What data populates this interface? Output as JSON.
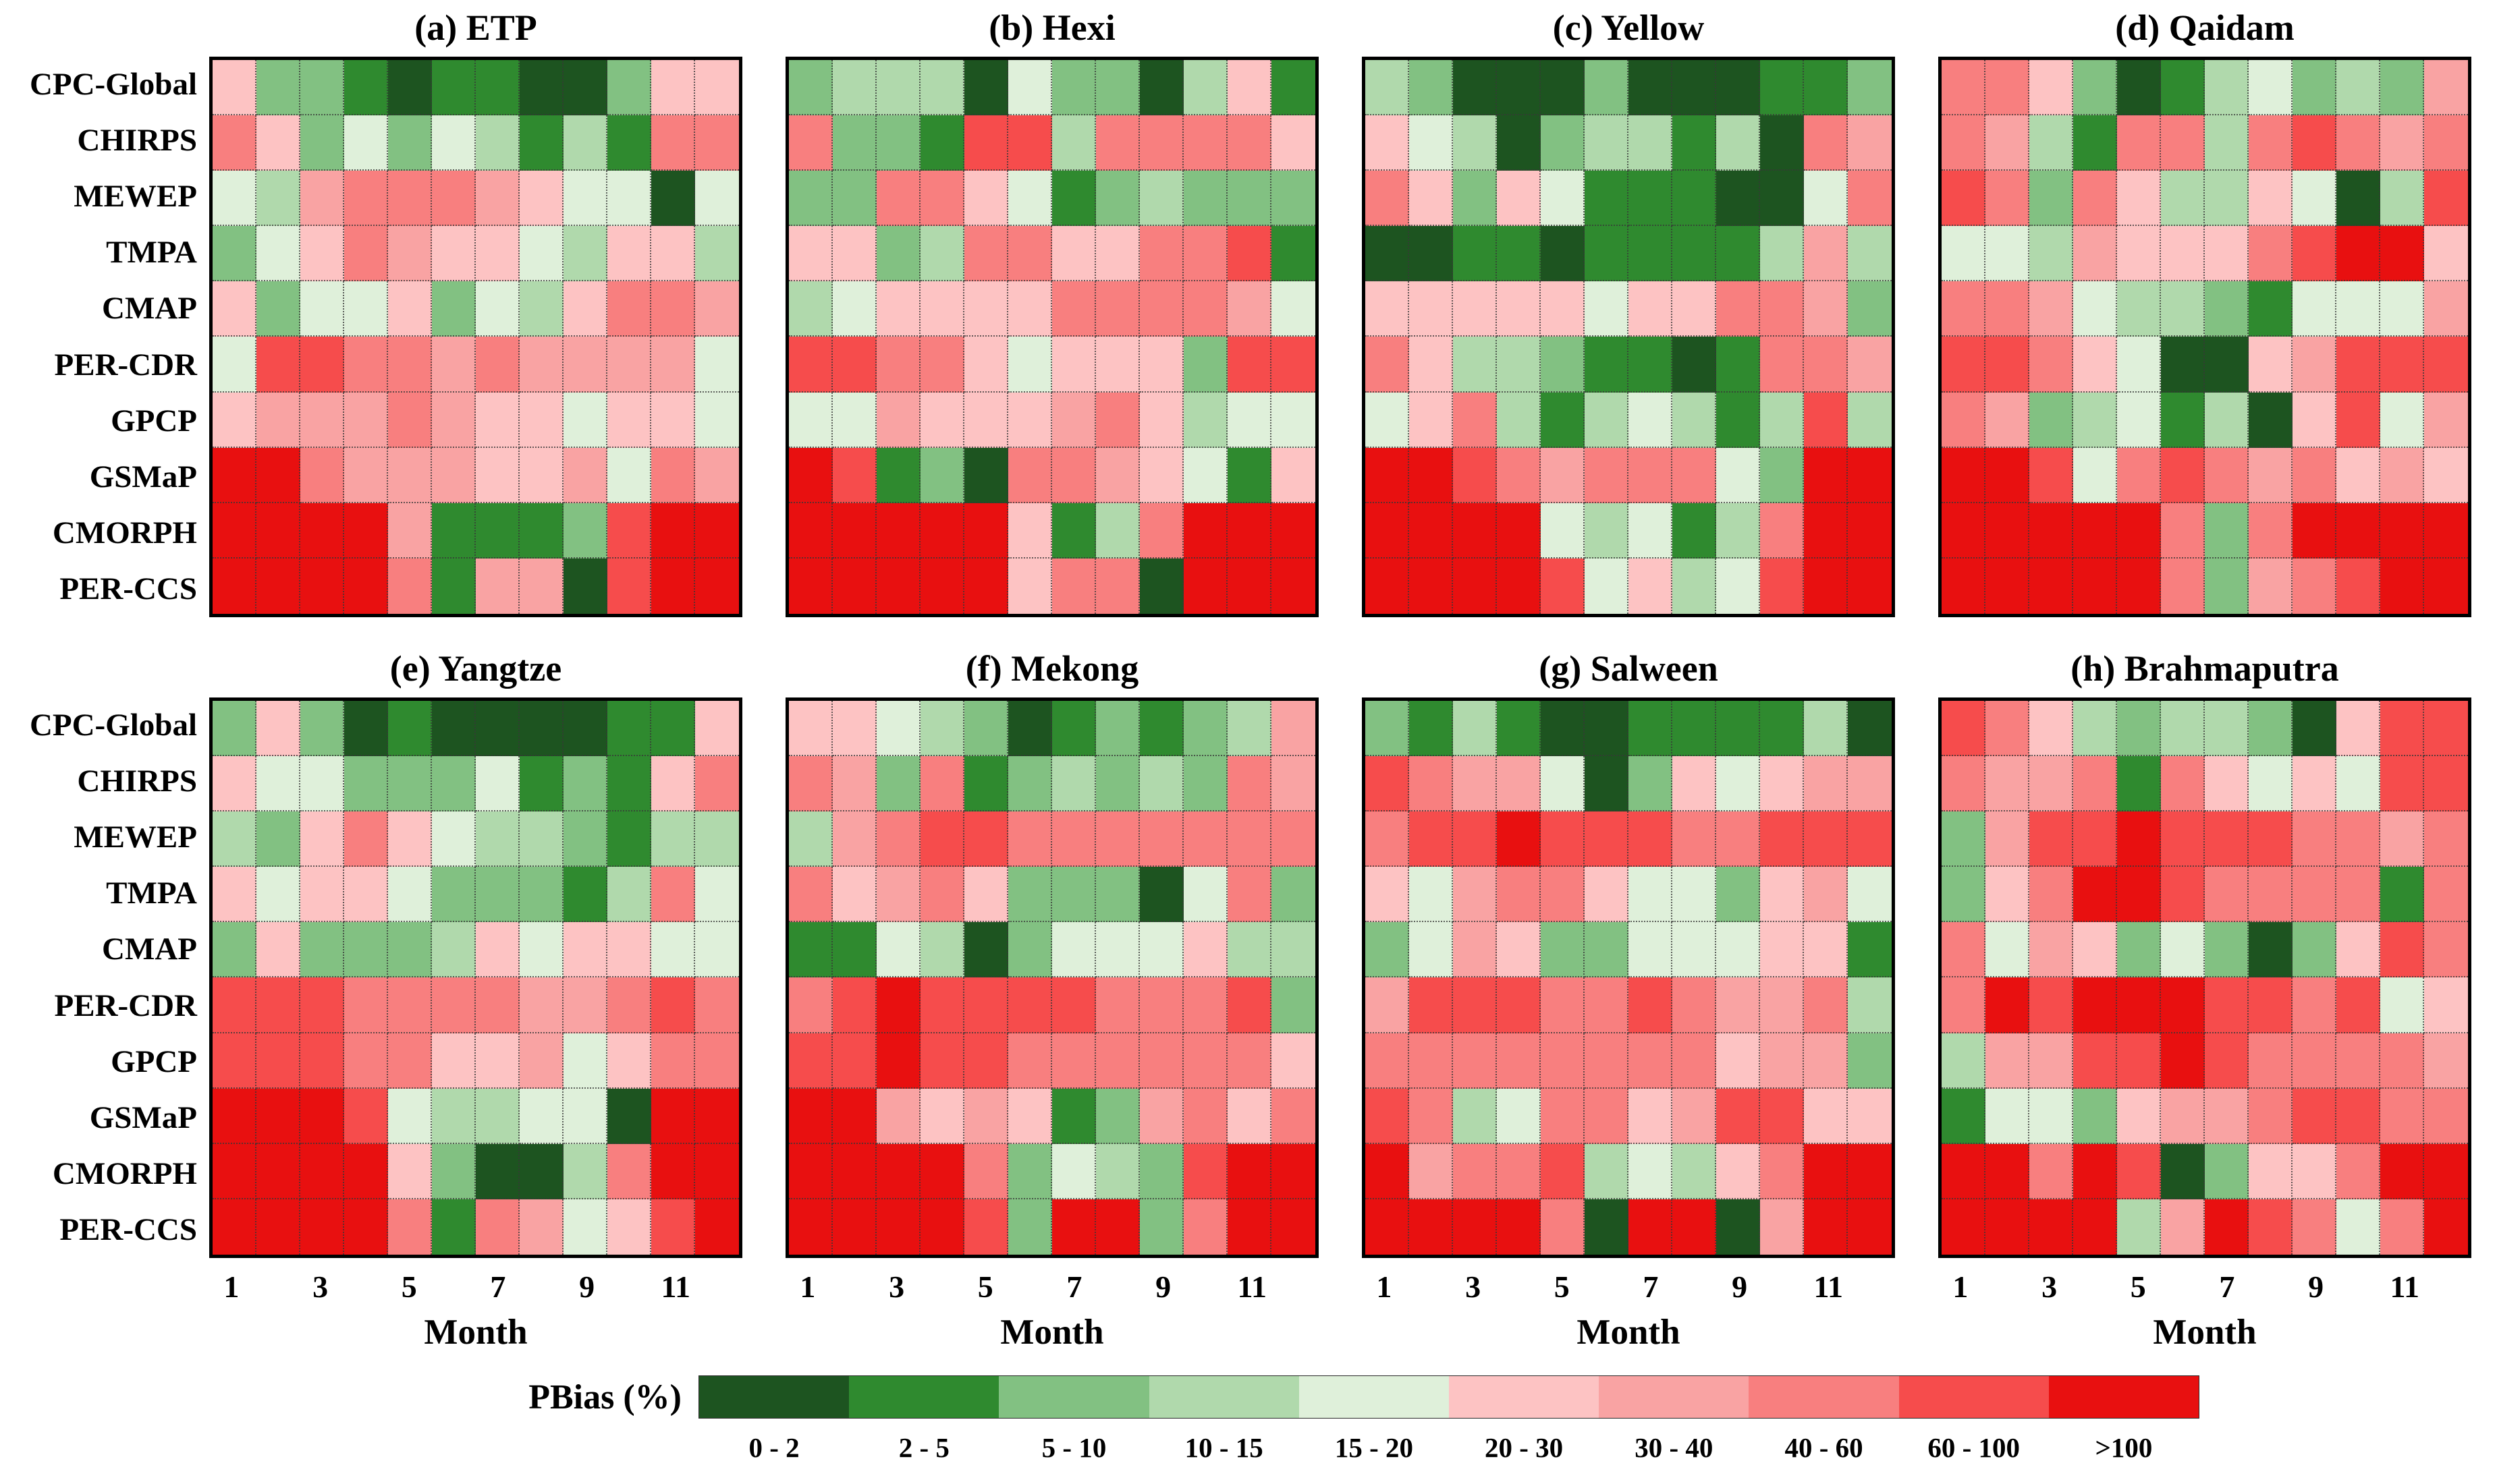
{
  "chart_data": {
    "type": "heatmap",
    "xlabel": "Month",
    "x_ticks": [
      "1",
      "3",
      "5",
      "7",
      "9",
      "11"
    ],
    "x_categories": [
      "1",
      "2",
      "3",
      "4",
      "5",
      "6",
      "7",
      "8",
      "9",
      "10",
      "11",
      "12"
    ],
    "row_labels": [
      "CPC-Global",
      "CHIRPS",
      "MEWEP",
      "TMPA",
      "CMAP",
      "PER-CDR",
      "GPCP",
      "GSMaP",
      "CMORPH",
      "PER-CCS"
    ],
    "value_encoding": "each grid value is an index into legend.classes giving the PBias (%) bin of that product-month cell",
    "legend": {
      "title": "PBias (%)",
      "classes": [
        {
          "label": "0 - 2",
          "color": "#1d5420"
        },
        {
          "label": "2 - 5",
          "color": "#2f8a2f"
        },
        {
          "label": "5 - 10",
          "color": "#82c182"
        },
        {
          "label": "10 - 15",
          "color": "#b0d9ac"
        },
        {
          "label": "15 - 20",
          "color": "#dff0da"
        },
        {
          "label": "20 - 30",
          "color": "#fdc3c3"
        },
        {
          "label": "30 - 40",
          "color": "#f9a3a3"
        },
        {
          "label": "40 - 60",
          "color": "#f87f7f"
        },
        {
          "label": "60 - 100",
          "color": "#f64c4c"
        },
        {
          "label": ">100",
          "color": "#e81010"
        }
      ]
    },
    "panels": [
      {
        "key": "a",
        "title": "(a) ETP",
        "grid": [
          [
            5,
            2,
            2,
            1,
            0,
            1,
            1,
            0,
            0,
            2,
            5,
            5
          ],
          [
            7,
            5,
            2,
            4,
            2,
            4,
            3,
            1,
            3,
            1,
            7,
            7
          ],
          [
            4,
            3,
            6,
            7,
            7,
            7,
            6,
            5,
            4,
            4,
            0,
            4
          ],
          [
            2,
            4,
            5,
            7,
            6,
            5,
            5,
            4,
            3,
            5,
            5,
            3
          ],
          [
            5,
            2,
            4,
            4,
            5,
            2,
            4,
            3,
            5,
            7,
            7,
            6
          ],
          [
            4,
            8,
            8,
            7,
            7,
            6,
            7,
            6,
            6,
            6,
            6,
            4
          ],
          [
            5,
            6,
            6,
            6,
            7,
            6,
            5,
            5,
            4,
            5,
            5,
            4
          ],
          [
            9,
            9,
            7,
            6,
            6,
            6,
            5,
            5,
            6,
            4,
            7,
            6
          ],
          [
            9,
            9,
            9,
            9,
            6,
            1,
            1,
            1,
            2,
            8,
            9,
            9
          ],
          [
            9,
            9,
            9,
            9,
            7,
            1,
            6,
            6,
            0,
            8,
            9,
            9
          ]
        ]
      },
      {
        "key": "b",
        "title": "(b) Hexi",
        "grid": [
          [
            2,
            3,
            3,
            3,
            0,
            4,
            2,
            2,
            0,
            3,
            5,
            1
          ],
          [
            7,
            2,
            2,
            1,
            8,
            8,
            3,
            7,
            7,
            7,
            7,
            5
          ],
          [
            2,
            2,
            7,
            7,
            5,
            4,
            1,
            2,
            3,
            2,
            2,
            2
          ],
          [
            5,
            5,
            2,
            3,
            7,
            7,
            5,
            5,
            7,
            7,
            8,
            1
          ],
          [
            3,
            4,
            5,
            5,
            5,
            5,
            7,
            7,
            7,
            7,
            6,
            4
          ],
          [
            8,
            8,
            7,
            7,
            5,
            4,
            5,
            5,
            5,
            2,
            8,
            8
          ],
          [
            4,
            4,
            6,
            5,
            5,
            5,
            6,
            7,
            5,
            3,
            4,
            4
          ],
          [
            9,
            8,
            1,
            2,
            0,
            7,
            7,
            6,
            5,
            4,
            1,
            5
          ],
          [
            9,
            9,
            9,
            9,
            9,
            5,
            1,
            3,
            7,
            9,
            9,
            9
          ],
          [
            9,
            9,
            9,
            9,
            9,
            5,
            7,
            7,
            0,
            9,
            9,
            9
          ]
        ]
      },
      {
        "key": "c",
        "title": "(c) Yellow",
        "grid": [
          [
            3,
            2,
            0,
            0,
            0,
            2,
            0,
            0,
            0,
            1,
            1,
            2
          ],
          [
            5,
            4,
            3,
            0,
            2,
            3,
            3,
            1,
            3,
            0,
            7,
            6
          ],
          [
            7,
            5,
            2,
            5,
            4,
            1,
            1,
            1,
            0,
            0,
            4,
            7
          ],
          [
            0,
            0,
            1,
            1,
            0,
            1,
            1,
            1,
            1,
            3,
            6,
            3
          ],
          [
            5,
            5,
            5,
            5,
            5,
            4,
            5,
            5,
            7,
            7,
            6,
            2
          ],
          [
            7,
            5,
            3,
            3,
            2,
            1,
            1,
            0,
            1,
            7,
            7,
            6
          ],
          [
            4,
            5,
            7,
            3,
            1,
            3,
            4,
            3,
            1,
            3,
            8,
            3
          ],
          [
            9,
            9,
            8,
            7,
            6,
            7,
            7,
            7,
            4,
            2,
            9,
            9
          ],
          [
            9,
            9,
            9,
            9,
            4,
            3,
            4,
            1,
            3,
            7,
            9,
            9
          ],
          [
            9,
            9,
            9,
            9,
            8,
            4,
            5,
            3,
            4,
            8,
            9,
            9
          ]
        ]
      },
      {
        "key": "d",
        "title": "(d) Qaidam",
        "grid": [
          [
            7,
            7,
            5,
            2,
            0,
            1,
            3,
            4,
            2,
            3,
            2,
            6
          ],
          [
            7,
            6,
            3,
            1,
            7,
            7,
            3,
            7,
            8,
            7,
            6,
            7
          ],
          [
            8,
            7,
            2,
            7,
            5,
            3,
            3,
            5,
            4,
            0,
            3,
            8
          ],
          [
            4,
            4,
            3,
            6,
            5,
            5,
            5,
            7,
            8,
            9,
            9,
            5
          ],
          [
            7,
            7,
            6,
            4,
            3,
            3,
            2,
            1,
            4,
            4,
            4,
            6
          ],
          [
            8,
            8,
            7,
            5,
            4,
            0,
            0,
            5,
            6,
            8,
            8,
            8
          ],
          [
            7,
            6,
            2,
            3,
            4,
            1,
            3,
            0,
            5,
            8,
            4,
            6
          ],
          [
            9,
            9,
            8,
            4,
            7,
            8,
            7,
            6,
            7,
            5,
            6,
            5
          ],
          [
            9,
            9,
            9,
            9,
            9,
            7,
            2,
            7,
            9,
            9,
            9,
            9
          ],
          [
            9,
            9,
            9,
            9,
            9,
            7,
            2,
            6,
            7,
            8,
            9,
            9
          ]
        ]
      },
      {
        "key": "e",
        "title": "(e) Yangtze",
        "grid": [
          [
            2,
            5,
            2,
            0,
            1,
            0,
            0,
            0,
            0,
            1,
            1,
            5
          ],
          [
            5,
            4,
            4,
            2,
            2,
            2,
            4,
            1,
            2,
            1,
            5,
            7
          ],
          [
            3,
            2,
            5,
            7,
            5,
            4,
            3,
            3,
            2,
            1,
            3,
            3
          ],
          [
            5,
            4,
            5,
            5,
            4,
            2,
            2,
            2,
            1,
            3,
            7,
            4
          ],
          [
            2,
            5,
            2,
            2,
            2,
            3,
            5,
            4,
            5,
            5,
            4,
            4
          ],
          [
            8,
            8,
            8,
            7,
            7,
            7,
            7,
            6,
            6,
            7,
            8,
            7
          ],
          [
            8,
            8,
            8,
            7,
            7,
            5,
            5,
            6,
            4,
            5,
            7,
            7
          ],
          [
            9,
            9,
            9,
            8,
            4,
            3,
            3,
            4,
            4,
            0,
            9,
            9
          ],
          [
            9,
            9,
            9,
            9,
            5,
            2,
            0,
            0,
            3,
            7,
            9,
            9
          ],
          [
            9,
            9,
            9,
            9,
            7,
            1,
            7,
            6,
            4,
            5,
            8,
            9
          ]
        ]
      },
      {
        "key": "f",
        "title": "(f) Mekong",
        "grid": [
          [
            5,
            5,
            4,
            3,
            2,
            0,
            1,
            2,
            1,
            2,
            3,
            6
          ],
          [
            7,
            6,
            2,
            7,
            1,
            2,
            3,
            2,
            3,
            2,
            7,
            6
          ],
          [
            3,
            6,
            7,
            8,
            8,
            7,
            7,
            7,
            7,
            7,
            7,
            7
          ],
          [
            7,
            5,
            6,
            7,
            5,
            2,
            2,
            2,
            0,
            4,
            7,
            2
          ],
          [
            1,
            1,
            4,
            3,
            0,
            2,
            4,
            4,
            4,
            5,
            3,
            3
          ],
          [
            7,
            8,
            9,
            8,
            8,
            8,
            8,
            7,
            7,
            7,
            8,
            2
          ],
          [
            8,
            8,
            9,
            8,
            8,
            7,
            7,
            7,
            7,
            7,
            7,
            5
          ],
          [
            9,
            9,
            6,
            5,
            6,
            5,
            1,
            2,
            6,
            7,
            5,
            7
          ],
          [
            9,
            9,
            9,
            9,
            7,
            2,
            4,
            3,
            2,
            8,
            9,
            9
          ],
          [
            9,
            9,
            9,
            9,
            8,
            2,
            9,
            9,
            2,
            7,
            9,
            9
          ]
        ]
      },
      {
        "key": "g",
        "title": "(g) Salween",
        "grid": [
          [
            2,
            1,
            3,
            1,
            0,
            0,
            1,
            1,
            1,
            1,
            3,
            0
          ],
          [
            8,
            7,
            6,
            6,
            4,
            0,
            2,
            5,
            4,
            5,
            6,
            6
          ],
          [
            7,
            8,
            8,
            9,
            8,
            8,
            8,
            7,
            7,
            8,
            8,
            8
          ],
          [
            5,
            4,
            6,
            7,
            7,
            5,
            4,
            4,
            2,
            5,
            6,
            4
          ],
          [
            2,
            4,
            6,
            5,
            2,
            2,
            4,
            4,
            4,
            5,
            5,
            1
          ],
          [
            6,
            8,
            8,
            8,
            7,
            7,
            8,
            7,
            6,
            6,
            7,
            3
          ],
          [
            7,
            7,
            7,
            7,
            7,
            7,
            7,
            7,
            5,
            6,
            6,
            2
          ],
          [
            8,
            7,
            3,
            4,
            7,
            7,
            5,
            6,
            8,
            8,
            5,
            5
          ],
          [
            9,
            6,
            7,
            7,
            8,
            3,
            4,
            3,
            5,
            7,
            9,
            9
          ],
          [
            9,
            9,
            9,
            9,
            7,
            0,
            9,
            9,
            0,
            6,
            9,
            9
          ]
        ]
      },
      {
        "key": "h",
        "title": "(h) Brahmaputra",
        "grid": [
          [
            8,
            7,
            5,
            3,
            2,
            3,
            3,
            2,
            0,
            5,
            8,
            8
          ],
          [
            7,
            6,
            6,
            7,
            1,
            7,
            5,
            4,
            5,
            4,
            8,
            8
          ],
          [
            2,
            6,
            8,
            8,
            9,
            8,
            8,
            8,
            7,
            7,
            6,
            7
          ],
          [
            2,
            5,
            7,
            9,
            9,
            8,
            7,
            7,
            7,
            7,
            1,
            7
          ],
          [
            7,
            4,
            6,
            5,
            2,
            4,
            2,
            0,
            2,
            5,
            8,
            7
          ],
          [
            7,
            9,
            8,
            9,
            9,
            9,
            8,
            8,
            7,
            8,
            4,
            5
          ],
          [
            3,
            6,
            6,
            8,
            8,
            9,
            8,
            7,
            7,
            7,
            7,
            6
          ],
          [
            1,
            4,
            4,
            2,
            5,
            6,
            6,
            7,
            8,
            8,
            7,
            7
          ],
          [
            9,
            9,
            7,
            9,
            8,
            0,
            2,
            5,
            5,
            7,
            9,
            9
          ],
          [
            9,
            9,
            9,
            9,
            3,
            6,
            9,
            8,
            7,
            4,
            7,
            9
          ]
        ]
      }
    ]
  }
}
